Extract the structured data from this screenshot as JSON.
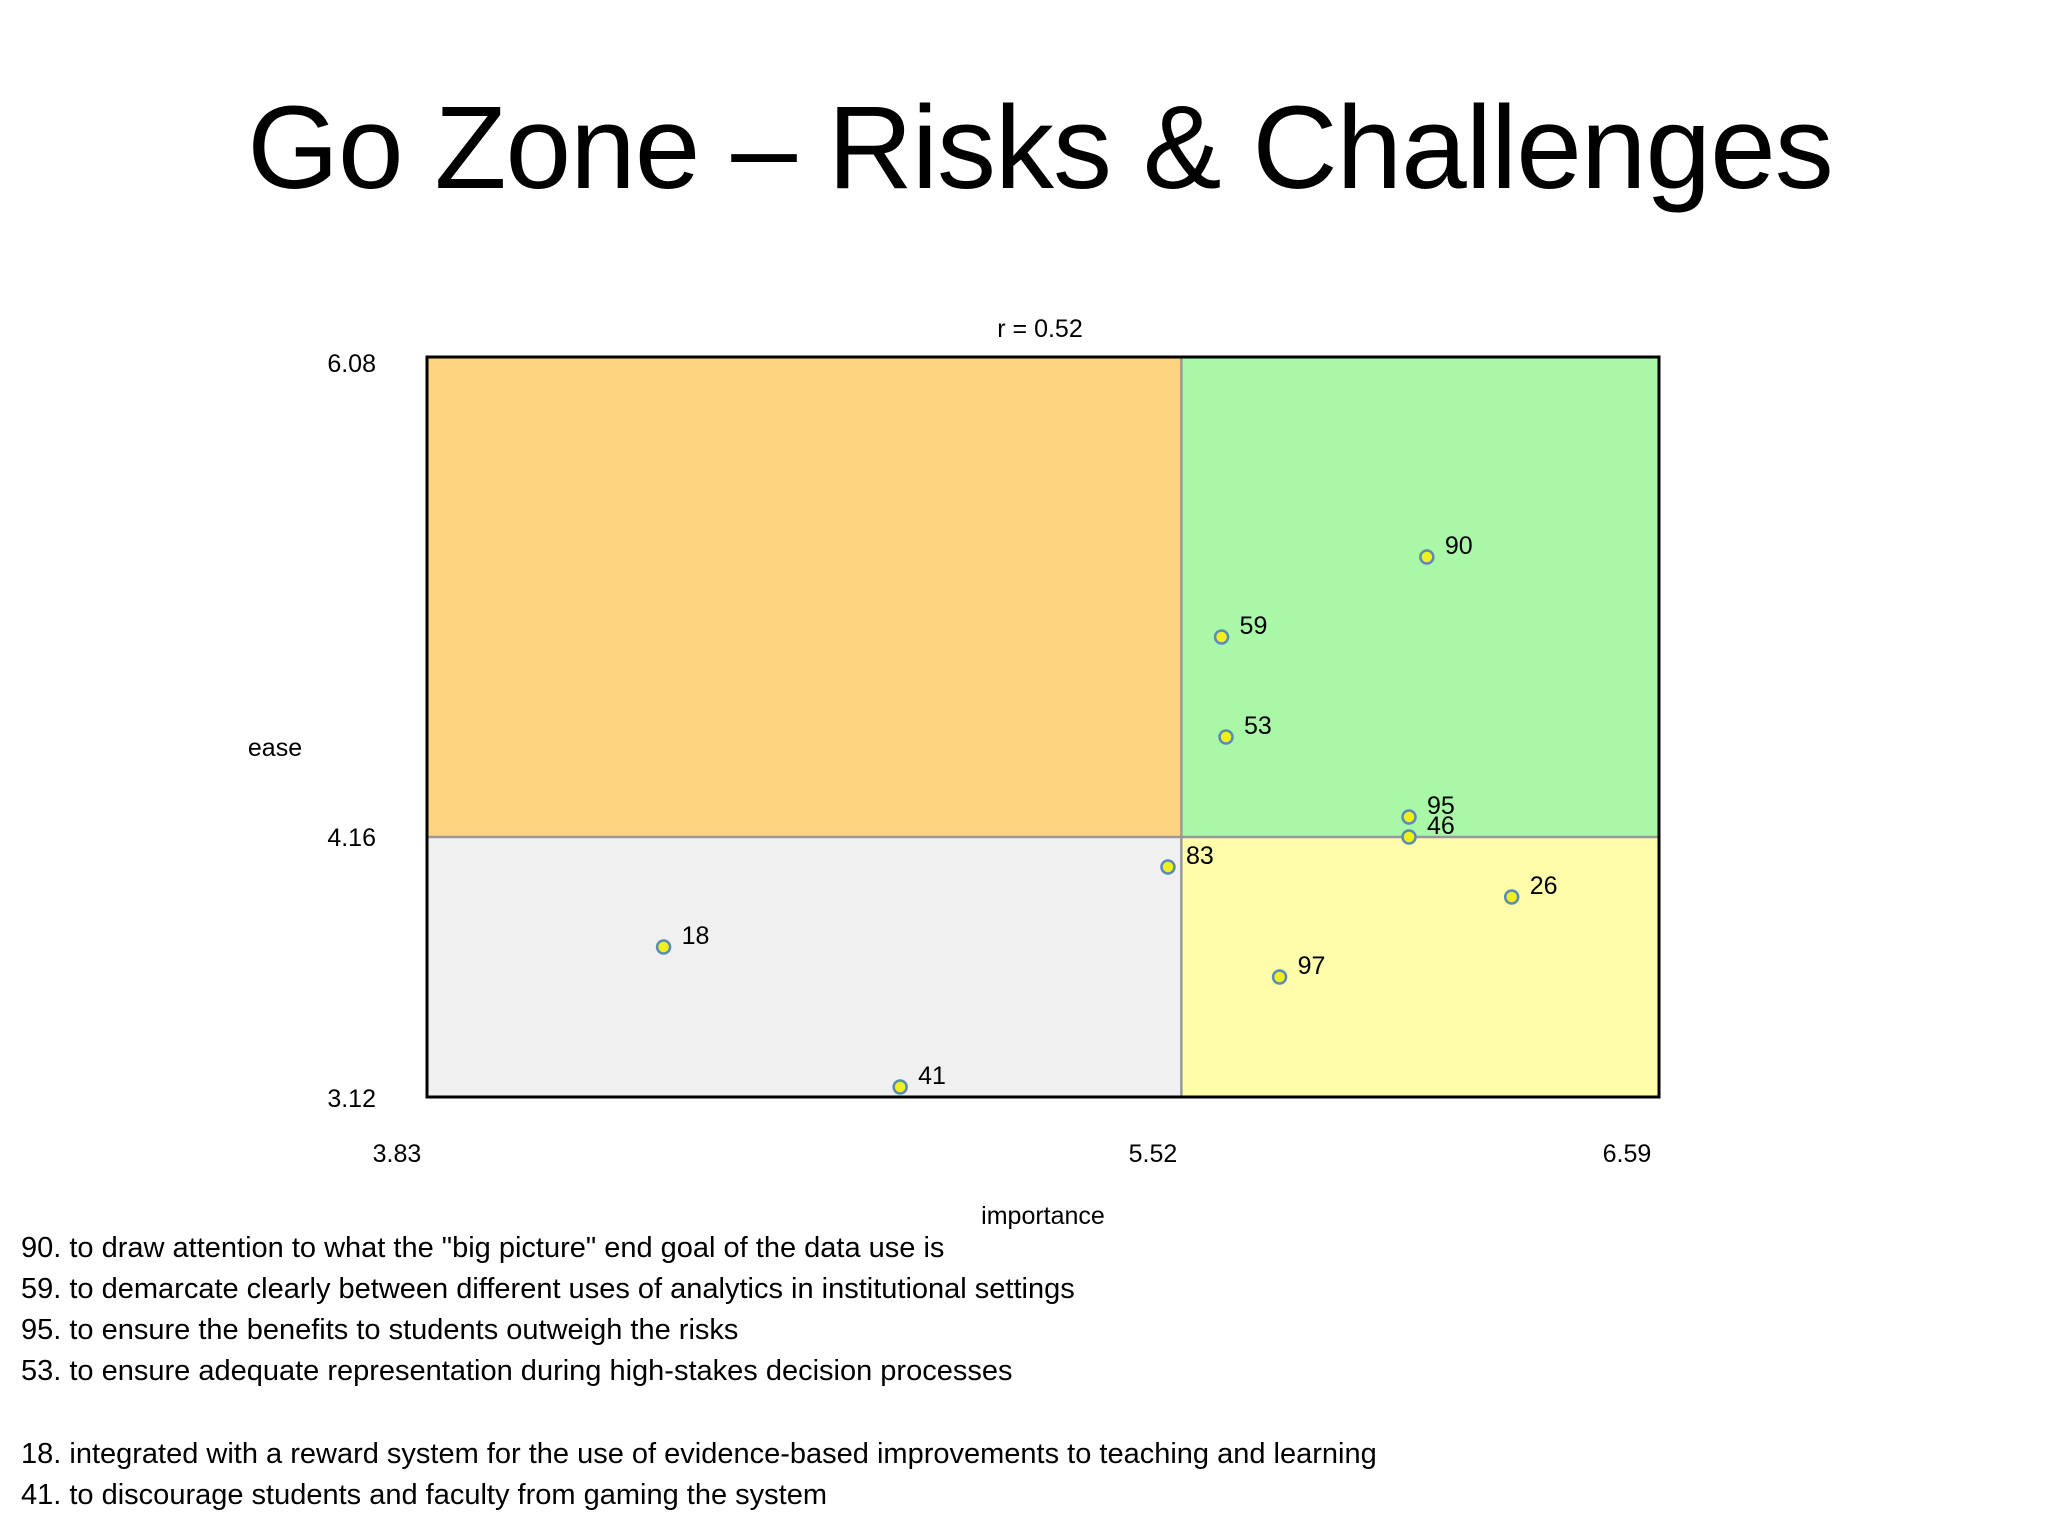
{
  "title": "Go Zone – Risks & Challenges",
  "chart_data": {
    "type": "scatter",
    "title": "r = 0.52",
    "xlabel": "importance",
    "ylabel": "ease",
    "xlim": [
      3.83,
      6.59
    ],
    "ylim": [
      3.12,
      6.08
    ],
    "x_ticks": [
      "3.83",
      "5.52",
      "6.59"
    ],
    "y_ticks": [
      "6.08",
      "4.16",
      "3.12"
    ],
    "x_mean": 5.52,
    "y_mean": 4.16,
    "quadrant_colors": {
      "top_left": "#FFD480",
      "top_right": "#A8F8A8",
      "bottom_left": "#F0F0F0",
      "bottom_right": "#FFFCAA"
    },
    "point_colors": {
      "fill": "#F0F020",
      "stroke": "#5A8CB4"
    },
    "points": [
      {
        "label": "90",
        "x": 6.07,
        "y": 5.28
      },
      {
        "label": "59",
        "x": 5.61,
        "y": 4.96
      },
      {
        "label": "53",
        "x": 5.62,
        "y": 4.56
      },
      {
        "label": "95",
        "x": 6.03,
        "y": 4.24
      },
      {
        "label": "46",
        "x": 6.03,
        "y": 4.16
      },
      {
        "label": "83",
        "x": 5.49,
        "y": 4.04
      },
      {
        "label": "26",
        "x": 6.26,
        "y": 3.92
      },
      {
        "label": "18",
        "x": 4.36,
        "y": 3.72
      },
      {
        "label": "97",
        "x": 5.74,
        "y": 3.6
      },
      {
        "label": "41",
        "x": 4.89,
        "y": 3.16
      }
    ]
  },
  "legend": [
    "90. to draw attention to what the \"big picture\" end goal of the data use is",
    "59. to demarcate clearly between different uses of analytics in institutional settings",
    "95. to ensure the benefits to students outweigh the risks",
    "53. to ensure adequate representation during high-stakes decision processes",
    "18. integrated with a reward system for the use of evidence-based improvements to teaching and learning",
    "41. to discourage students and faculty from gaming the system"
  ]
}
